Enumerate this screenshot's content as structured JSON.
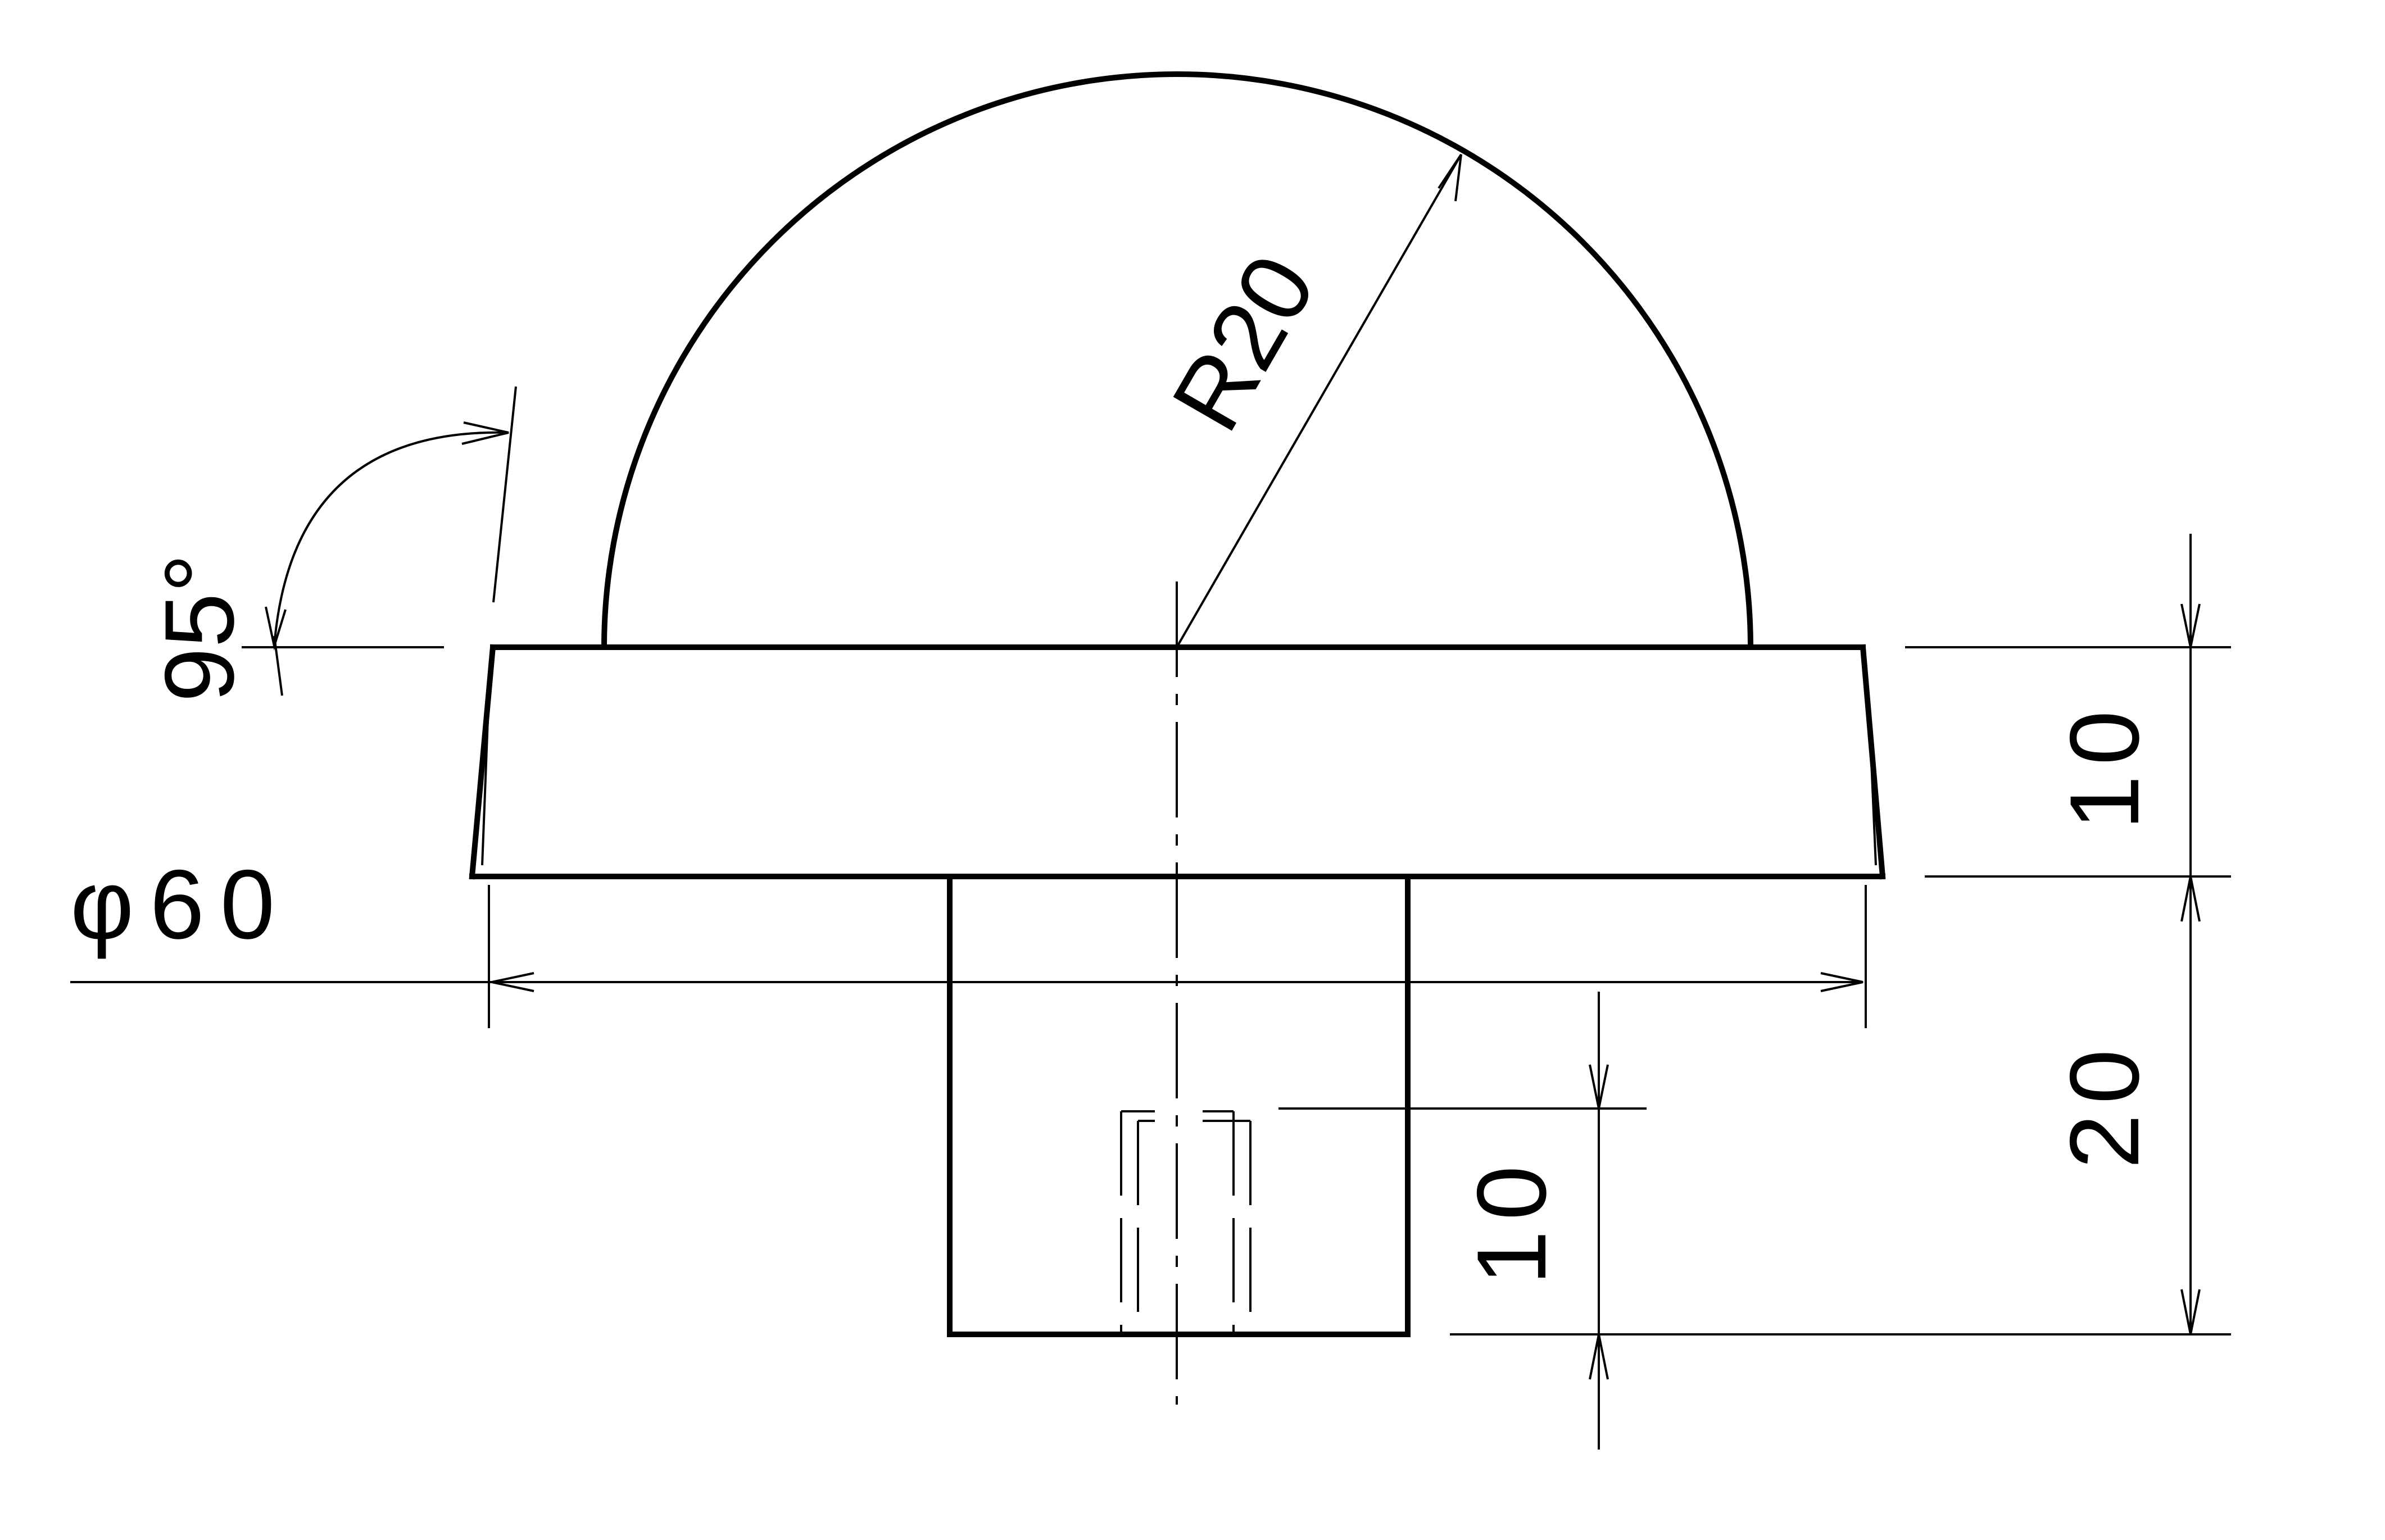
{
  "drawing": {
    "dimensions": {
      "angle": "95°",
      "radius": "R20",
      "outer_diameter": "φ60",
      "flange_height": "10",
      "shaft_height": "20",
      "hole_depth": "10"
    }
  }
}
